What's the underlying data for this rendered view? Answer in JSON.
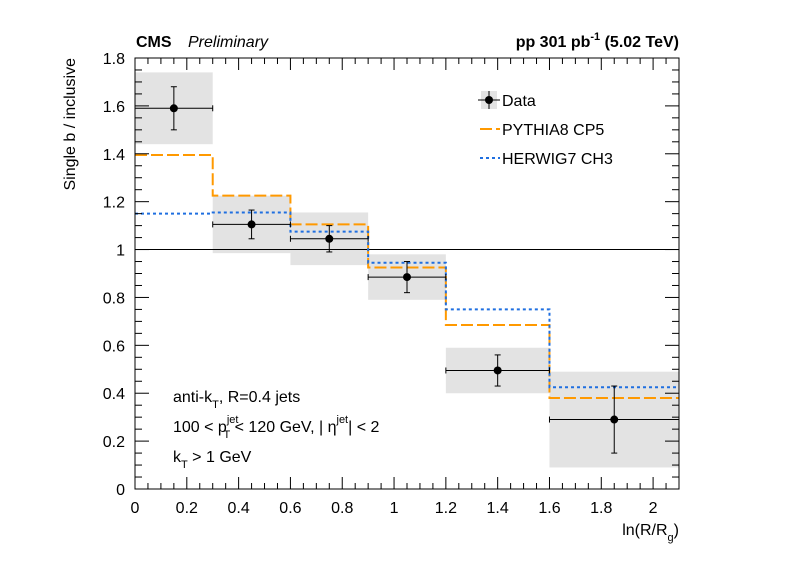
{
  "chart_data": {
    "type": "step",
    "header_left_bold": "CMS",
    "header_left_italic": "Preliminary",
    "header_right": {
      "pre": "pp 301 pb",
      "sup": "-1",
      "post": " (5.02 TeV)"
    },
    "xlabel": {
      "pre": "ln(R/R",
      "sub": "g",
      "post": ")"
    },
    "ylabel": "Single b / inclusive",
    "xlim": [
      0,
      2.1
    ],
    "ylim": [
      0,
      1.8
    ],
    "x_ticks": [
      "0",
      "0.2",
      "0.4",
      "0.6",
      "0.8",
      "1",
      "1.2",
      "1.4",
      "1.6",
      "1.8",
      "2"
    ],
    "y_ticks": [
      "0",
      "0.2",
      "0.4",
      "0.6",
      "0.8",
      "1",
      "1.2",
      "1.4",
      "1.6",
      "1.8"
    ],
    "reference_line": 1.0,
    "bin_edges": [
      0,
      0.3,
      0.6,
      0.9,
      1.2,
      1.6,
      2.1
    ],
    "data": {
      "name": "Data",
      "x": [
        0.15,
        0.45,
        0.75,
        1.05,
        1.4,
        1.85
      ],
      "y": [
        1.59,
        1.105,
        1.045,
        0.885,
        0.495,
        0.29
      ],
      "stat_err": [
        0.09,
        0.06,
        0.055,
        0.065,
        0.065,
        0.14
      ],
      "syst_err": [
        0.15,
        0.12,
        0.11,
        0.095,
        0.095,
        0.2
      ]
    },
    "series": [
      {
        "name": "PYTHIA8 CP5",
        "color": "#ff9900",
        "dash": "long-dash",
        "values": [
          1.395,
          1.225,
          1.105,
          0.925,
          0.685,
          0.38
        ]
      },
      {
        "name": "HERWIG7 CH3",
        "color": "#1f6fe0",
        "dash": "dotted",
        "values": [
          1.15,
          1.155,
          1.075,
          0.945,
          0.75,
          0.425
        ]
      }
    ],
    "legend_placement": "top-right",
    "annotations": [
      {
        "parts": [
          {
            "t": "anti-k"
          },
          {
            "sub": "T"
          },
          {
            "t": ", R=0.4 jets"
          }
        ]
      },
      {
        "parts": [
          {
            "t": "100 < p"
          },
          {
            "subsup": [
              "T",
              "jet"
            ]
          },
          {
            "t": " < 120 GeV, | η"
          },
          {
            "sup": "jet"
          },
          {
            "t": "| < 2"
          }
        ]
      },
      {
        "parts": [
          {
            "t": "k"
          },
          {
            "sub": "T"
          },
          {
            "t": " > 1 GeV"
          }
        ]
      }
    ]
  }
}
